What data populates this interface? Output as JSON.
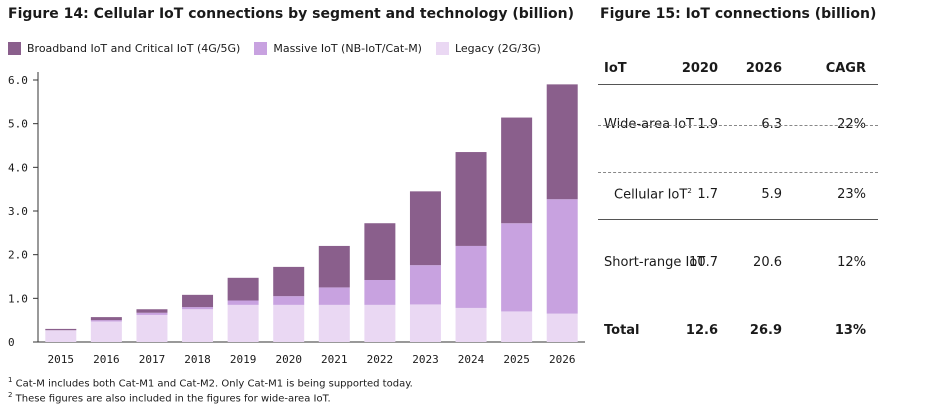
{
  "fig14": {
    "title": "Figure 14: Cellular IoT connections by segment and technology (billion)",
    "legend": [
      {
        "label": "Broadband IoT and Critical IoT (4G/5G)",
        "color": "#8a5f8c"
      },
      {
        "label": "Massive IoT (NB-IoT/Cat-M)",
        "color": "#c8a2e0"
      },
      {
        "label": "Legacy (2G/3G)",
        "color": "#ead8f3"
      }
    ]
  },
  "chart_data": {
    "type": "bar",
    "stacked": true,
    "categories": [
      "2015",
      "2016",
      "2017",
      "2018",
      "2019",
      "2020",
      "2021",
      "2022",
      "2023",
      "2024",
      "2025",
      "2026"
    ],
    "series": [
      {
        "name": "Legacy (2G/3G)",
        "color": "#ead8f3",
        "values": [
          0.27,
          0.47,
          0.62,
          0.75,
          0.85,
          0.85,
          0.85,
          0.85,
          0.86,
          0.78,
          0.7,
          0.65
        ]
      },
      {
        "name": "Massive IoT (NB-IoT/Cat-M)",
        "color": "#c8a2e0",
        "values": [
          0.0,
          0.03,
          0.05,
          0.05,
          0.1,
          0.2,
          0.4,
          0.57,
          0.9,
          1.42,
          2.02,
          2.62
        ]
      },
      {
        "name": "Broadband IoT and Critical IoT (4G/5G)",
        "color": "#8a5f8c",
        "values": [
          0.03,
          0.07,
          0.08,
          0.28,
          0.52,
          0.67,
          0.95,
          1.3,
          1.69,
          2.15,
          2.42,
          2.63
        ]
      }
    ],
    "ylim": [
      0,
      6.0
    ],
    "yticks": [
      "0",
      "1.0",
      "2.0",
      "3.0",
      "4.0",
      "5.0",
      "6.0"
    ]
  },
  "fig15": {
    "title": "Figure 15: IoT connections (billion)",
    "headers": [
      "IoT",
      "2020",
      "2026",
      "CAGR"
    ],
    "rows": [
      {
        "label": "Wide-area IoT",
        "v2020": "1.9",
        "v2026": "6.3",
        "cagr": "22%"
      },
      {
        "label": "Cellular IoT",
        "sup": "2",
        "v2020": "1.7",
        "v2026": "5.9",
        "cagr": "23%"
      },
      {
        "label": "Short-range IoT",
        "v2020": "10.7",
        "v2026": "20.6",
        "cagr": "12%"
      },
      {
        "label": "Total",
        "v2020": "12.6",
        "v2026": "26.9",
        "cagr": "13%"
      }
    ]
  },
  "footnotes": {
    "n1_mark": "1",
    "n1": " Cat-M includes both Cat-M1 and Cat-M2. Only Cat-M1 is being supported today.",
    "n2_mark": "2",
    "n2": " These figures are also included in the figures for wide-area IoT."
  }
}
